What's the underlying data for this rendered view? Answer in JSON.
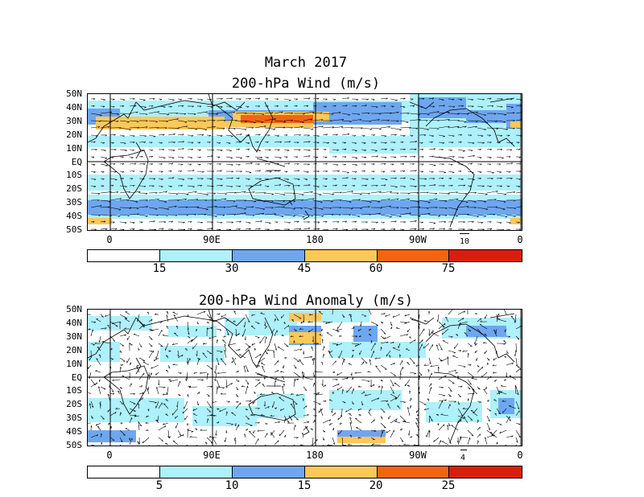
{
  "colors": {
    "c1": "#ffffff",
    "c2": "#aef0fb",
    "c3": "#6ea7f0",
    "c4": "#fcc85a",
    "c5": "#f26413",
    "c6": "#d91e0c",
    "land": "#000000"
  },
  "panel1": {
    "title_line1": "March 2017",
    "title_line2": "200-hPa Wind (m/s)",
    "ref_vector": "10",
    "colorbar_labels": [
      "15",
      "30",
      "45",
      "60",
      "75"
    ]
  },
  "panel2": {
    "title": "200-hPa Wind Anomaly (m/s)",
    "ref_vector": "4",
    "colorbar_labels": [
      "5",
      "10",
      "15",
      "20",
      "25"
    ]
  },
  "lat_labels": [
    "50N",
    "40N",
    "30N",
    "20N",
    "10N",
    "EQ",
    "10S",
    "20S",
    "30S",
    "40S",
    "50S"
  ],
  "lon_labels": [
    "0",
    "90E",
    "180",
    "90W",
    "0"
  ]
}
